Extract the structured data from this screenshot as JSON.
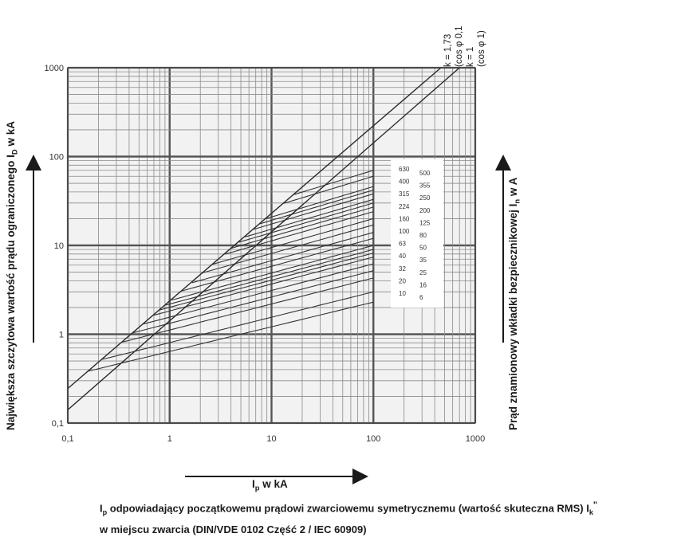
{
  "chart_data": {
    "type": "line",
    "xscale": "log",
    "yscale": "log",
    "xlim": [
      0.1,
      1000
    ],
    "ylim": [
      0.1,
      1000
    ],
    "grid": true,
    "x_ticks": [
      "0,1",
      "1",
      "10",
      "100",
      "1000"
    ],
    "y_ticks": [
      "1000",
      "100",
      "10",
      "1",
      "0,1"
    ],
    "ylabel_left": {
      "prefix": "Największa szczytowa wartość prądu ograniczonego I",
      "sub": "D",
      "suffix": " w kA"
    },
    "ylabel_right": {
      "prefix": "Prąd znamionowy wkładki bezpiecznikowej I",
      "sub": "n",
      "suffix": " w A"
    },
    "xlabel": {
      "prefix": "I",
      "sub": "p",
      "suffix": " w kA"
    },
    "caption": {
      "line1_prefix": "I",
      "line1_sub": "p",
      "line1_text": " odpowiadający początkowemu prądowi zwarciowemu symetrycznemu  (wartość skuteczna RMS) I",
      "line1_sub2": "k",
      "line1_sup": "\"",
      "line2": "w miejscu zwarcia (DIN/VDE 0102 Część 2 / IEC 60909)"
    },
    "k_annotations": [
      "k = 1,73",
      "(cos φ 0,1",
      "k = 1",
      "(cos φ 1)"
    ],
    "reference_lines": [
      {
        "k": 1.73,
        "x": [
          0.1,
          460
        ],
        "y": [
          0.245,
          1000
        ]
      },
      {
        "k": 1.0,
        "x": [
          0.1,
          700
        ],
        "y": [
          0.141,
          1000
        ]
      }
    ],
    "fuse_ratings_left": [
      "630",
      "400",
      "315",
      "224",
      "160",
      "100",
      "63",
      "40",
      "32",
      "20",
      "10"
    ],
    "fuse_ratings_right": [
      "500",
      "355",
      "250",
      "200",
      "125",
      "80",
      "50",
      "35",
      "25",
      "16",
      "6"
    ],
    "fuse_curves": [
      {
        "In": 630,
        "y_end": 70
      },
      {
        "In": 500,
        "y_end": 60
      },
      {
        "In": 400,
        "y_end": 46
      },
      {
        "In": 355,
        "y_end": 42
      },
      {
        "In": 315,
        "y_end": 38
      },
      {
        "In": 250,
        "y_end": 33
      },
      {
        "In": 224,
        "y_end": 30
      },
      {
        "In": 200,
        "y_end": 27
      },
      {
        "In": 160,
        "y_end": 24
      },
      {
        "In": 125,
        "y_end": 20
      },
      {
        "In": 100,
        "y_end": 17
      },
      {
        "In": 80,
        "y_end": 14
      },
      {
        "In": 63,
        "y_end": 12
      },
      {
        "In": 50,
        "y_end": 10
      },
      {
        "In": 40,
        "y_end": 9
      },
      {
        "In": 35,
        "y_end": 8.2
      },
      {
        "In": 32,
        "y_end": 7.4
      },
      {
        "In": 25,
        "y_end": 6.2
      },
      {
        "In": 20,
        "y_end": 5.2
      },
      {
        "In": 16,
        "y_end": 4.3
      },
      {
        "In": 10,
        "y_end": 3.0
      },
      {
        "In": 6,
        "y_end": 2.3
      }
    ]
  }
}
